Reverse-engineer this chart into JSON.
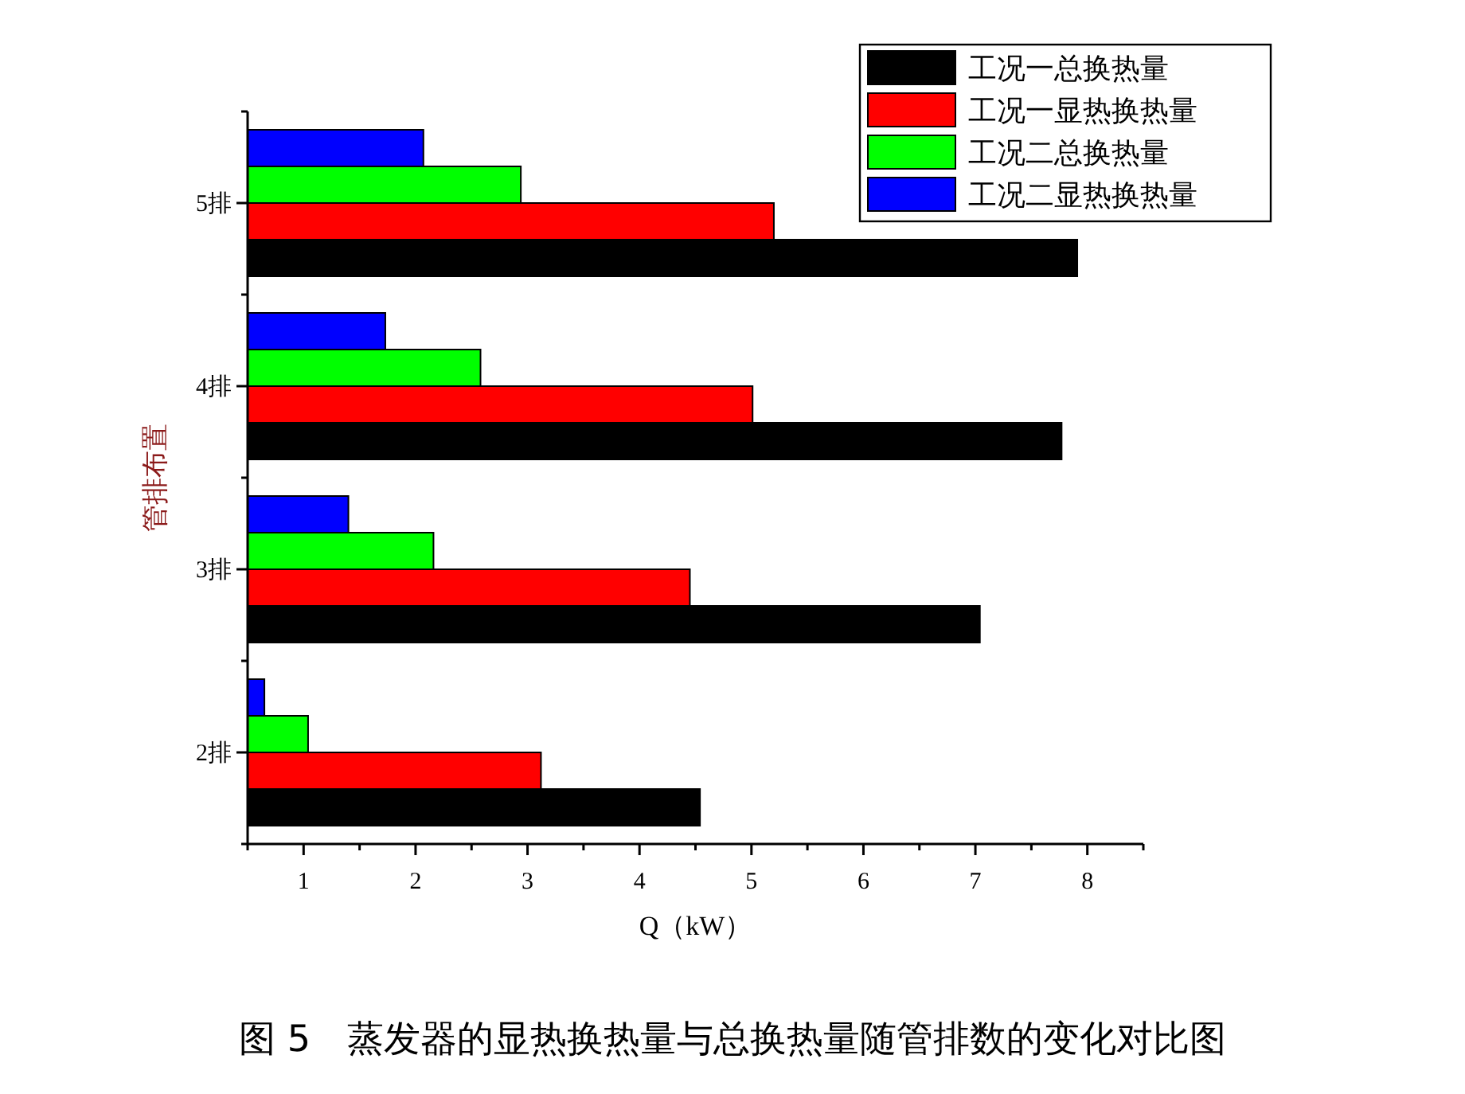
{
  "chart_data": {
    "type": "bar",
    "orientation": "horizontal",
    "title": "图 5　蒸发器的显热换热量与总换热量随管排数的变化对比图",
    "xlabel": "Q（kW）",
    "ylabel": "管排布置",
    "categories": [
      "5排",
      "4排",
      "3排",
      "2排"
    ],
    "series": [
      {
        "name": "工况一总换热量",
        "color": "#000000",
        "values": [
          7.91,
          7.77,
          7.04,
          4.54
        ]
      },
      {
        "name": "工况一显热换热量",
        "color": "#ff0000",
        "values": [
          5.2,
          5.01,
          4.45,
          3.12
        ]
      },
      {
        "name": "工况二总换热量",
        "color": "#00ff00",
        "values": [
          2.94,
          2.58,
          2.16,
          1.04
        ]
      },
      {
        "name": "工况二显热换热量",
        "color": "#0000ff",
        "values": [
          2.07,
          1.73,
          1.4,
          0.65
        ]
      }
    ],
    "xlim": [
      0.5,
      8.5
    ],
    "xticks": [
      {
        "value": 0.5,
        "label": null
      },
      1,
      {
        "value": 1.5,
        "label": null
      },
      2,
      {
        "value": 2.5,
        "label": null
      },
      3,
      {
        "value": 3.5,
        "label": null
      },
      4,
      {
        "value": 4.5,
        "label": null
      },
      5,
      {
        "value": 5.5,
        "label": null
      },
      6,
      {
        "value": 6.5,
        "label": null
      },
      7,
      {
        "value": 7.5,
        "label": null
      },
      8,
      {
        "value": 8.5,
        "label": null
      }
    ],
    "legend": "top right"
  }
}
